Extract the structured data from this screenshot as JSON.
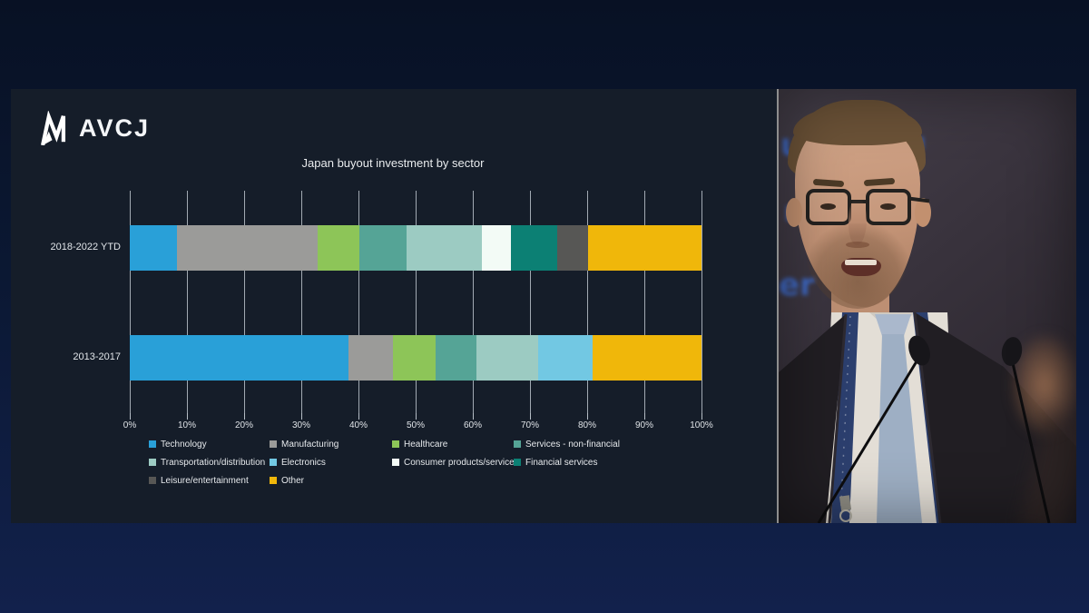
{
  "slide": {
    "logo": {
      "text": "AVCJ",
      "icon": "avcj-mark-icon",
      "color": "#ffffff"
    },
    "background": "#151d29"
  },
  "chart_data": {
    "type": "bar",
    "orientation": "horizontal",
    "stacked": true,
    "title": "Japan buyout investment by sector",
    "categories": [
      "2018-2022 YTD",
      "2013-2017"
    ],
    "series": [
      {
        "name": "Technology",
        "color": "#29a0d8",
        "values": [
          8.2,
          38.3
        ]
      },
      {
        "name": "Manufacturing",
        "color": "#9b9b99",
        "values": [
          24.6,
          7.7
        ]
      },
      {
        "name": "Healthcare",
        "color": "#8dc558",
        "values": [
          7.4,
          7.5
        ]
      },
      {
        "name": "Services - non-financial",
        "color": "#55a496",
        "values": [
          8.2,
          7.1
        ]
      },
      {
        "name": "Transportation/distribution",
        "color": "#9ccbc2",
        "values": [
          13.2,
          10.9
        ]
      },
      {
        "name": "Electronics",
        "color": "#72c8e3",
        "values": [
          0,
          9.5
        ]
      },
      {
        "name": "Consumer products/services",
        "color": "#f3fbf6",
        "values": [
          5.0,
          0
        ]
      },
      {
        "name": "Financial services",
        "color": "#0c8074",
        "values": [
          8.2,
          0
        ]
      },
      {
        "name": "Leisure/entertainment",
        "color": "#575755",
        "values": [
          5.3,
          0
        ]
      },
      {
        "name": "Other",
        "color": "#f0b70a",
        "values": [
          19.9,
          19.0
        ]
      }
    ],
    "x_ticks": [
      "0%",
      "10%",
      "20%",
      "30%",
      "40%",
      "50%",
      "60%",
      "70%",
      "80%",
      "90%",
      "100%"
    ],
    "xlim": [
      0,
      100
    ],
    "grid": "vertical",
    "legend_position": "bottom",
    "legend_rows": [
      [
        "Technology",
        "Manufacturing",
        "Healthcare",
        "Services - non-financial"
      ],
      [
        "Transportation/distribution",
        "Electronics",
        "Consumer products/services",
        "Financial services"
      ],
      [
        "Leisure/entertainment",
        "Other"
      ]
    ]
  },
  "video": {
    "description": "conference speaker at podium",
    "glow_texts": [
      "u",
      "ı",
      "er",
      "ıı"
    ]
  }
}
